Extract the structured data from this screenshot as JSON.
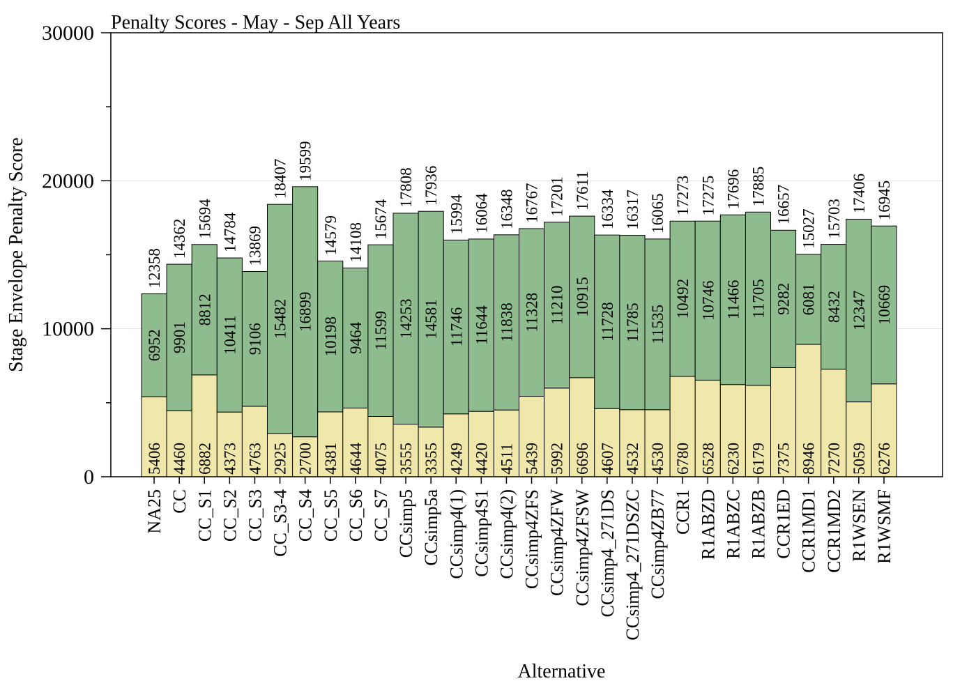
{
  "chart_data": {
    "type": "bar",
    "stacked": true,
    "title": "Penalty Scores - May - Sep All Years",
    "xlabel": "Alternative",
    "ylabel": "Stage Envelope Penalty Score",
    "ylim": [
      0,
      30000
    ],
    "y_ticks": [
      "0",
      "10000",
      "20000",
      "30000"
    ],
    "y_minor_step": 5000,
    "grid": true,
    "categories": [
      "NA25",
      "CC",
      "CC_S1",
      "CC_S2",
      "CC_S3",
      "CC_S3-4",
      "CC_S4",
      "CC_S5",
      "CC_S6",
      "CC_S7",
      "CCsimp5",
      "CCsimp5a",
      "CCsimp4(1)",
      "CCsimp4S1",
      "CCsimp4(2)",
      "CCsimp4ZFS",
      "CCsimp4ZFW",
      "CCsimp4ZFSW",
      "CCsimp4_271DS",
      "CCsimp4_271DSZC",
      "CCsimp4ZB77",
      "CCR1",
      "R1ABZD",
      "R1ABZC",
      "R1ABZB",
      "CCR1ED",
      "CCR1MD1",
      "CCR1MD2",
      "R1WSEN",
      "R1WSMF"
    ],
    "series": [
      {
        "color": "#EFE8AA",
        "values": [
          5406,
          4460,
          6882,
          4373,
          4763,
          2925,
          2700,
          4381,
          4644,
          4075,
          3555,
          3355,
          4249,
          4420,
          4511,
          5439,
          5992,
          6696,
          4607,
          4532,
          4530,
          6780,
          6528,
          6230,
          6179,
          7375,
          8946,
          7270,
          5059,
          6276
        ]
      },
      {
        "color": "#8FBC8F",
        "values": [
          6952,
          9901,
          8812,
          10411,
          9106,
          15482,
          16899,
          10198,
          9464,
          11599,
          14253,
          14581,
          11746,
          11644,
          11838,
          11328,
          11210,
          10915,
          11728,
          11785,
          11535,
          10492,
          10746,
          11466,
          11705,
          9282,
          6081,
          8432,
          12347,
          10669
        ]
      }
    ],
    "totals": [
      12358,
      14362,
      15694,
      14784,
      13869,
      18407,
      19599,
      14579,
      14108,
      15674,
      17808,
      17936,
      15994,
      16064,
      16348,
      16767,
      17201,
      17611,
      16334,
      16317,
      16065,
      17273,
      17275,
      17696,
      17885,
      16657,
      15027,
      15703,
      17406,
      16945
    ]
  }
}
